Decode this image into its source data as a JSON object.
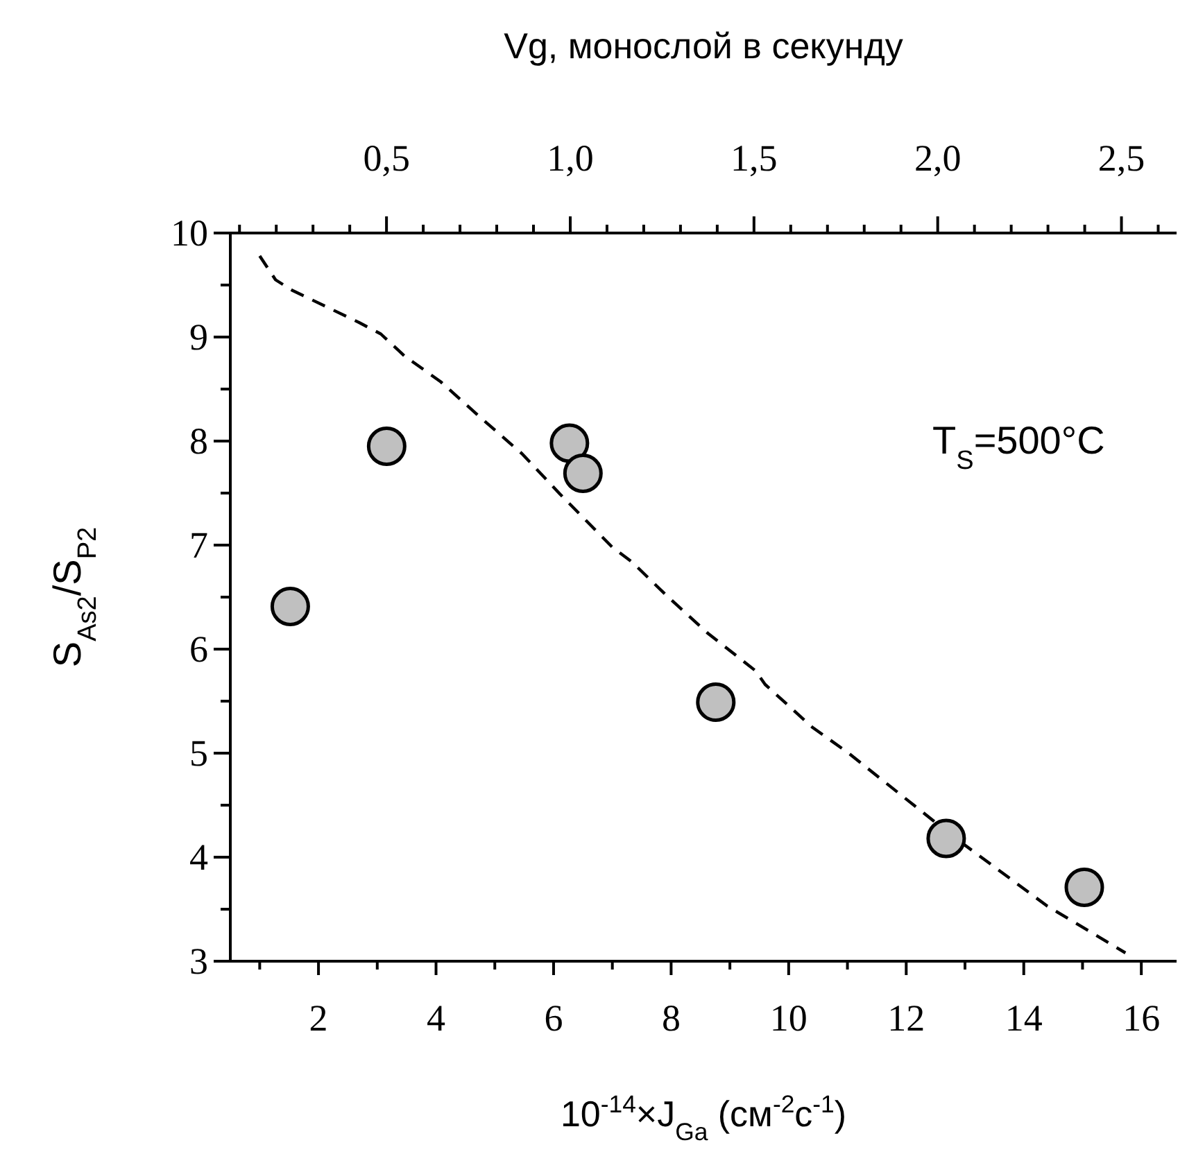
{
  "chart_data": {
    "type": "scatter",
    "x2label": "Vg, монослой в секунду",
    "xlabel": "10$^{-14}$×J$_{Ga}$ (см$^{-2}$с$^{-1}$)",
    "ylabel": "S$_{As2}$/S$_{P2}$",
    "annotations": [
      "T$_{S}$=500°C"
    ],
    "xlim": [
      0.5,
      16.6
    ],
    "xticks": [
      {
        "value": 1,
        "label": null
      },
      2,
      {
        "value": 3,
        "label": null
      },
      4,
      {
        "value": 5,
        "label": null
      },
      6,
      {
        "value": 7,
        "label": null
      },
      8,
      {
        "value": 9,
        "label": null
      },
      10,
      {
        "value": 11,
        "label": null
      },
      12,
      {
        "value": 13,
        "label": null
      },
      14,
      {
        "value": 15,
        "label": null
      },
      16
    ],
    "x2lim": [
      0.075,
      2.65
    ],
    "x2ticks": [
      {
        "value": 0.1,
        "label": null
      },
      {
        "value": 0.2,
        "label": null
      },
      {
        "value": 0.3,
        "label": null
      },
      {
        "value": 0.4,
        "label": null
      },
      {
        "value": 0.5,
        "label": "0,5"
      },
      {
        "value": 0.6,
        "label": null
      },
      {
        "value": 0.7,
        "label": null
      },
      {
        "value": 0.8,
        "label": null
      },
      {
        "value": 0.9,
        "label": null
      },
      {
        "value": 1.0,
        "label": "1,0"
      },
      {
        "value": 1.1,
        "label": null
      },
      {
        "value": 1.2,
        "label": null
      },
      {
        "value": 1.3,
        "label": null
      },
      {
        "value": 1.4,
        "label": null
      },
      {
        "value": 1.5,
        "label": "1,5"
      },
      {
        "value": 1.6,
        "label": null
      },
      {
        "value": 1.7,
        "label": null
      },
      {
        "value": 1.8,
        "label": null
      },
      {
        "value": 1.9,
        "label": null
      },
      {
        "value": 2.0,
        "label": "2,0"
      },
      {
        "value": 2.1,
        "label": null
      },
      {
        "value": 2.2,
        "label": null
      },
      {
        "value": 2.3,
        "label": null
      },
      {
        "value": 2.4,
        "label": null
      },
      {
        "value": 2.5,
        "label": "2,5"
      },
      {
        "value": 2.6,
        "label": null
      }
    ],
    "ylim": [
      3,
      10
    ],
    "yticks": [
      3,
      {
        "value": 3.5,
        "label": null
      },
      4,
      {
        "value": 4.5,
        "label": null
      },
      5,
      {
        "value": 5.5,
        "label": null
      },
      6,
      {
        "value": 6.5,
        "label": null
      },
      7,
      {
        "value": 7.5,
        "label": null
      },
      8,
      {
        "value": 8.5,
        "label": null
      },
      9,
      {
        "value": 9.5,
        "label": null
      },
      10
    ],
    "grid": false,
    "series": [
      {
        "type": "line",
        "color": "#000000",
        "line_style": "dashed",
        "x": [
          1.0,
          1.27,
          1.55,
          2.69,
          3.06,
          3.46,
          4.08,
          4.77,
          5.46,
          6.11,
          7.0,
          7.33,
          7.95,
          8.63,
          9.44,
          9.6,
          10.4,
          11.02,
          12.75,
          14.4,
          15.73
        ],
        "values": [
          9.78,
          9.55,
          9.45,
          9.14,
          9.03,
          8.82,
          8.57,
          8.22,
          7.88,
          7.49,
          6.98,
          6.84,
          6.5,
          6.15,
          5.79,
          5.66,
          5.25,
          5.0,
          4.22,
          3.53,
          3.08
        ]
      },
      {
        "marker": "circle",
        "color": "#c0c0c0",
        "x": [
          1.52,
          3.16,
          6.27,
          6.5,
          8.76,
          12.68,
          15.03
        ],
        "values": [
          6.41,
          7.95,
          7.98,
          7.69,
          5.49,
          4.18,
          3.71
        ]
      }
    ]
  }
}
